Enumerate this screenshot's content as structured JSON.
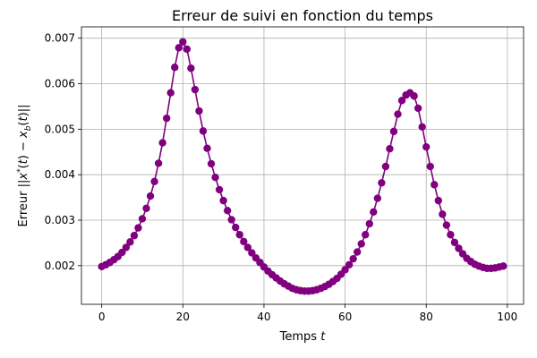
{
  "chart_data": {
    "type": "line",
    "title": "Erreur de suivi en fonction du temps",
    "xlabel": "Temps t",
    "ylabel": "Erreur ||x*(t) − x_b(t)||",
    "xlim": [
      -5,
      104
    ],
    "ylim": [
      0.00115,
      0.00725
    ],
    "xticks": [
      0,
      20,
      40,
      60,
      80,
      100
    ],
    "xtick_labels": [
      "0",
      "20",
      "40",
      "60",
      "80",
      "100"
    ],
    "yticks": [
      0.002,
      0.003,
      0.004,
      0.005,
      0.006,
      0.007
    ],
    "ytick_labels": [
      "0.002",
      "0.003",
      "0.004",
      "0.005",
      "0.006",
      "0.007"
    ],
    "grid": true,
    "series": [
      {
        "color": "#800080",
        "marker": "circle",
        "x": [
          0,
          1,
          2,
          3,
          4,
          5,
          6,
          7,
          8,
          9,
          10,
          11,
          12,
          13,
          14,
          15,
          16,
          17,
          18,
          19,
          20,
          21,
          22,
          23,
          24,
          25,
          26,
          27,
          28,
          29,
          30,
          31,
          32,
          33,
          34,
          35,
          36,
          37,
          38,
          39,
          40,
          41,
          42,
          43,
          44,
          45,
          46,
          47,
          48,
          49,
          50,
          51,
          52,
          53,
          54,
          55,
          56,
          57,
          58,
          59,
          60,
          61,
          62,
          63,
          64,
          65,
          66,
          67,
          68,
          69,
          70,
          71,
          72,
          73,
          74,
          75,
          76,
          77,
          78,
          79,
          80,
          81,
          82,
          83,
          84,
          85,
          86,
          87,
          88,
          89,
          90,
          91,
          92,
          93,
          94,
          95,
          96,
          97,
          98,
          99
        ],
        "y": [
          0.00198,
          0.00202,
          0.00207,
          0.00213,
          0.0022,
          0.00229,
          0.0024,
          0.00252,
          0.00266,
          0.00283,
          0.00303,
          0.00326,
          0.00353,
          0.00385,
          0.00425,
          0.0047,
          0.00524,
          0.0058,
          0.00636,
          0.00679,
          0.00692,
          0.00676,
          0.00634,
          0.00587,
          0.0054,
          0.00496,
          0.00458,
          0.00424,
          0.00394,
          0.00367,
          0.00343,
          0.00321,
          0.00301,
          0.00284,
          0.00268,
          0.00253,
          0.0024,
          0.00228,
          0.00217,
          0.00207,
          0.00197,
          0.00188,
          0.0018,
          0.00173,
          0.00166,
          0.0016,
          0.00155,
          0.0015,
          0.00147,
          0.00145,
          0.00144,
          0.00144,
          0.00145,
          0.00147,
          0.0015,
          0.00154,
          0.00159,
          0.00165,
          0.00172,
          0.00181,
          0.00191,
          0.00202,
          0.00215,
          0.0023,
          0.00248,
          0.00268,
          0.00292,
          0.00318,
          0.00348,
          0.00382,
          0.00418,
          0.00457,
          0.00495,
          0.00533,
          0.00563,
          0.00575,
          0.0058,
          0.00573,
          0.00546,
          0.00505,
          0.00461,
          0.00418,
          0.00378,
          0.00343,
          0.00313,
          0.00289,
          0.00268,
          0.00251,
          0.00238,
          0.00226,
          0.00216,
          0.00209,
          0.00203,
          0.00199,
          0.00196,
          0.00194,
          0.00194,
          0.00195,
          0.00197,
          0.00199
        ]
      }
    ]
  }
}
